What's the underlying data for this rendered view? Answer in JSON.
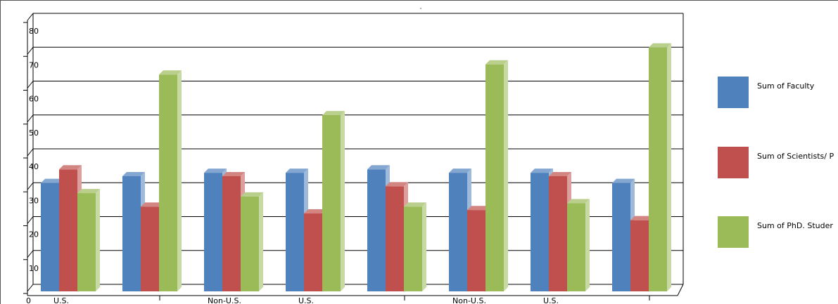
{
  "chart_data": {
    "type": "bar",
    "title": "",
    "xlabel": "",
    "ylabel": "",
    "ylim": [
      0,
      80
    ],
    "yticks": [
      "0",
      "10",
      "20",
      "30",
      "40",
      "50",
      "60",
      "70",
      "80"
    ],
    "categories": [
      "U.S.",
      "",
      "Non-U.S.",
      "U.S.",
      "",
      "Non-U.S.",
      "U.S.",
      ""
    ],
    "grid": true,
    "legend": "right",
    "series": [
      {
        "name": "Sum of  Faculty",
        "color": "#4f81bd",
        "values": [
          32,
          34,
          35,
          35,
          36,
          35,
          35,
          32
        ]
      },
      {
        "name": "Sum of  Scientists/ P",
        "color": "#c0504d",
        "values": [
          36,
          25,
          34,
          23,
          31,
          24,
          34,
          21
        ]
      },
      {
        "name": "Sum of  PhD. Studer",
        "color": "#9bbb59",
        "values": [
          29,
          64,
          28,
          52,
          25,
          67,
          26,
          72
        ]
      }
    ]
  }
}
